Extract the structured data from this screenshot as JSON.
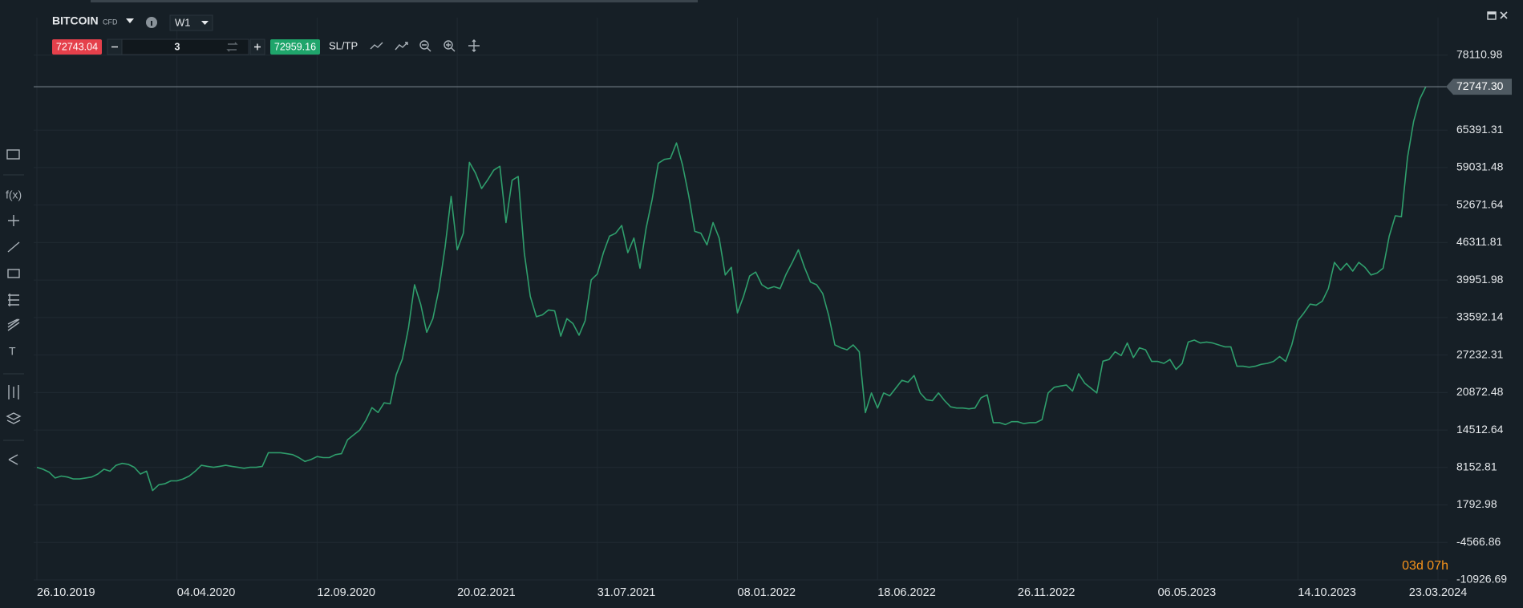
{
  "toolbar": {
    "instrument": "BITCOIN",
    "kind": "CFD",
    "timeframe": "W1",
    "sell_price": "72743.04",
    "quantity": "3",
    "buy_price": "72959.16",
    "sltp": "SL/TP"
  },
  "sidebar": {
    "fx": "f(x)",
    "text_tool": "T"
  },
  "countdown": "03d 07h",
  "chart_data": {
    "type": "line",
    "color": "#2f9e6c",
    "grid": true,
    "last_price": {
      "value": 72747.3,
      "label": "72747.30"
    },
    "ylim": [
      -10926.69,
      84470.76
    ],
    "yticks": [
      -10926.69,
      -4566.86,
      1792.98,
      8152.81,
      14512.64,
      20872.48,
      27232.31,
      33592.14,
      39951.98,
      46311.81,
      52671.64,
      59031.48,
      65391.31,
      78110.98
    ],
    "categories": [
      "26.10.2019",
      null,
      null,
      null,
      null,
      null,
      null,
      null,
      null,
      null,
      null,
      null,
      null,
      null,
      null,
      null,
      null,
      null,
      null,
      null,
      null,
      null,
      null,
      "04.04.2020",
      null,
      null,
      null,
      null,
      null,
      null,
      null,
      null,
      null,
      null,
      null,
      null,
      null,
      null,
      null,
      null,
      null,
      null,
      null,
      null,
      null,
      null,
      "12.09.2020",
      null,
      null,
      null,
      null,
      null,
      null,
      null,
      null,
      null,
      null,
      null,
      null,
      null,
      null,
      null,
      null,
      null,
      null,
      null,
      null,
      null,
      null,
      "20.02.2021",
      null,
      null,
      null,
      null,
      null,
      null,
      null,
      null,
      null,
      null,
      null,
      null,
      null,
      null,
      null,
      null,
      null,
      null,
      null,
      null,
      null,
      null,
      "31.07.2021",
      null,
      null,
      null,
      null,
      null,
      null,
      null,
      null,
      null,
      null,
      null,
      null,
      null,
      null,
      null,
      null,
      null,
      null,
      null,
      null,
      null,
      null,
      "08.01.2022",
      null,
      null,
      null,
      null,
      null,
      null,
      null,
      null,
      null,
      null,
      null,
      null,
      null,
      null,
      null,
      null,
      null,
      null,
      null,
      null,
      null,
      null,
      "18.06.2022",
      null,
      null,
      null,
      null,
      null,
      null,
      null,
      null,
      null,
      null,
      null,
      null,
      null,
      null,
      null,
      null,
      null,
      null,
      null,
      null,
      null,
      null,
      "26.11.2022",
      null,
      null,
      null,
      null,
      null,
      null,
      null,
      null,
      null,
      null,
      null,
      null,
      null,
      null,
      null,
      null,
      null,
      null,
      null,
      null,
      null,
      null,
      "06.05.2023",
      null,
      null,
      null,
      null,
      null,
      null,
      null,
      null,
      null,
      null,
      null,
      null,
      null,
      null,
      null,
      null,
      null,
      null,
      null,
      null,
      null,
      null,
      "14.10.2023",
      null,
      null,
      null,
      null,
      null,
      null,
      null,
      null,
      null,
      null,
      null,
      null,
      null,
      null,
      null,
      null,
      null,
      null,
      null,
      null,
      null,
      null,
      "23.03.2024"
    ],
    "values": [
      8185,
      7855,
      7361,
      6373,
      6702,
      6537,
      6208,
      6208,
      6373,
      6537,
      7031,
      7855,
      7526,
      8514,
      8844,
      8679,
      8185,
      7031,
      7526,
      4231,
      5219,
      5384,
      5878,
      5878,
      6208,
      6702,
      7526,
      8514,
      8350,
      8185,
      8350,
      8514,
      8350,
      8185,
      8020,
      8185,
      8185,
      8350,
      10657,
      10657,
      10657,
      10492,
      10327,
      9833,
      9174,
      9503,
      9998,
      9833,
      9833,
      10327,
      10492,
      12863,
      13689,
      14513,
      16160,
      18302,
      17484,
      19124,
      18950,
      23922,
      26552,
      31810,
      39160,
      35866,
      31086,
      33392,
      38393,
      45480,
      54152,
      45093,
      47892,
      59924,
      58100,
      55470,
      56954,
      58602,
      59260,
      49706,
      56880,
      57530,
      44597,
      37183,
      33723,
      34052,
      34876,
      34711,
      30427,
      33392,
      32568,
      30591,
      33063,
      39983,
      40972,
      44597,
      47398,
      47892,
      49211,
      44597,
      47069,
      41960,
      48717,
      53658,
      59760,
      60419,
      60583,
      63220,
      59424,
      54317,
      48220,
      47892,
      45915,
      49706,
      47069,
      40808,
      42125,
      34381,
      37183,
      40643,
      41301,
      39160,
      38500,
      38828,
      38500,
      40972,
      42950,
      45093,
      42125,
      39617,
      39160,
      37677,
      33887,
      28945,
      28451,
      28120,
      28945,
      27792,
      17458,
      20801,
      18236,
      20801,
      20308,
      21626,
      22945,
      22613,
      23767,
      20801,
      19648,
      19483,
      20801,
      19483,
      18447,
      18236,
      18236,
      18104,
      18236,
      19978,
      20473,
      15763,
      15763,
      15434,
      15928,
      15928,
      15598,
      15763,
      15763,
      16257,
      20801,
      21760,
      21963,
      22128,
      21111,
      24064,
      22458,
      21626,
      20801,
      26178,
      26474,
      27792,
      27133,
      29275,
      26803,
      28451,
      28120,
      26145,
      26145,
      25816,
      26474,
      24783,
      25816,
      29440,
      29769,
      29275,
      29440,
      29275,
      28945,
      28616,
      28616,
      25322,
      25322,
      25157,
      25322,
      25651,
      25816,
      26145,
      26968,
      26145,
      28945,
      33063,
      34381,
      35866,
      35701,
      36360,
      38500,
      42950,
      41633,
      42784,
      41468,
      42950,
      42125,
      40808,
      41137,
      41960,
      47398,
      50858,
      50694,
      60744,
      66840,
      70626,
      72747.3,
      null,
      null
    ]
  }
}
